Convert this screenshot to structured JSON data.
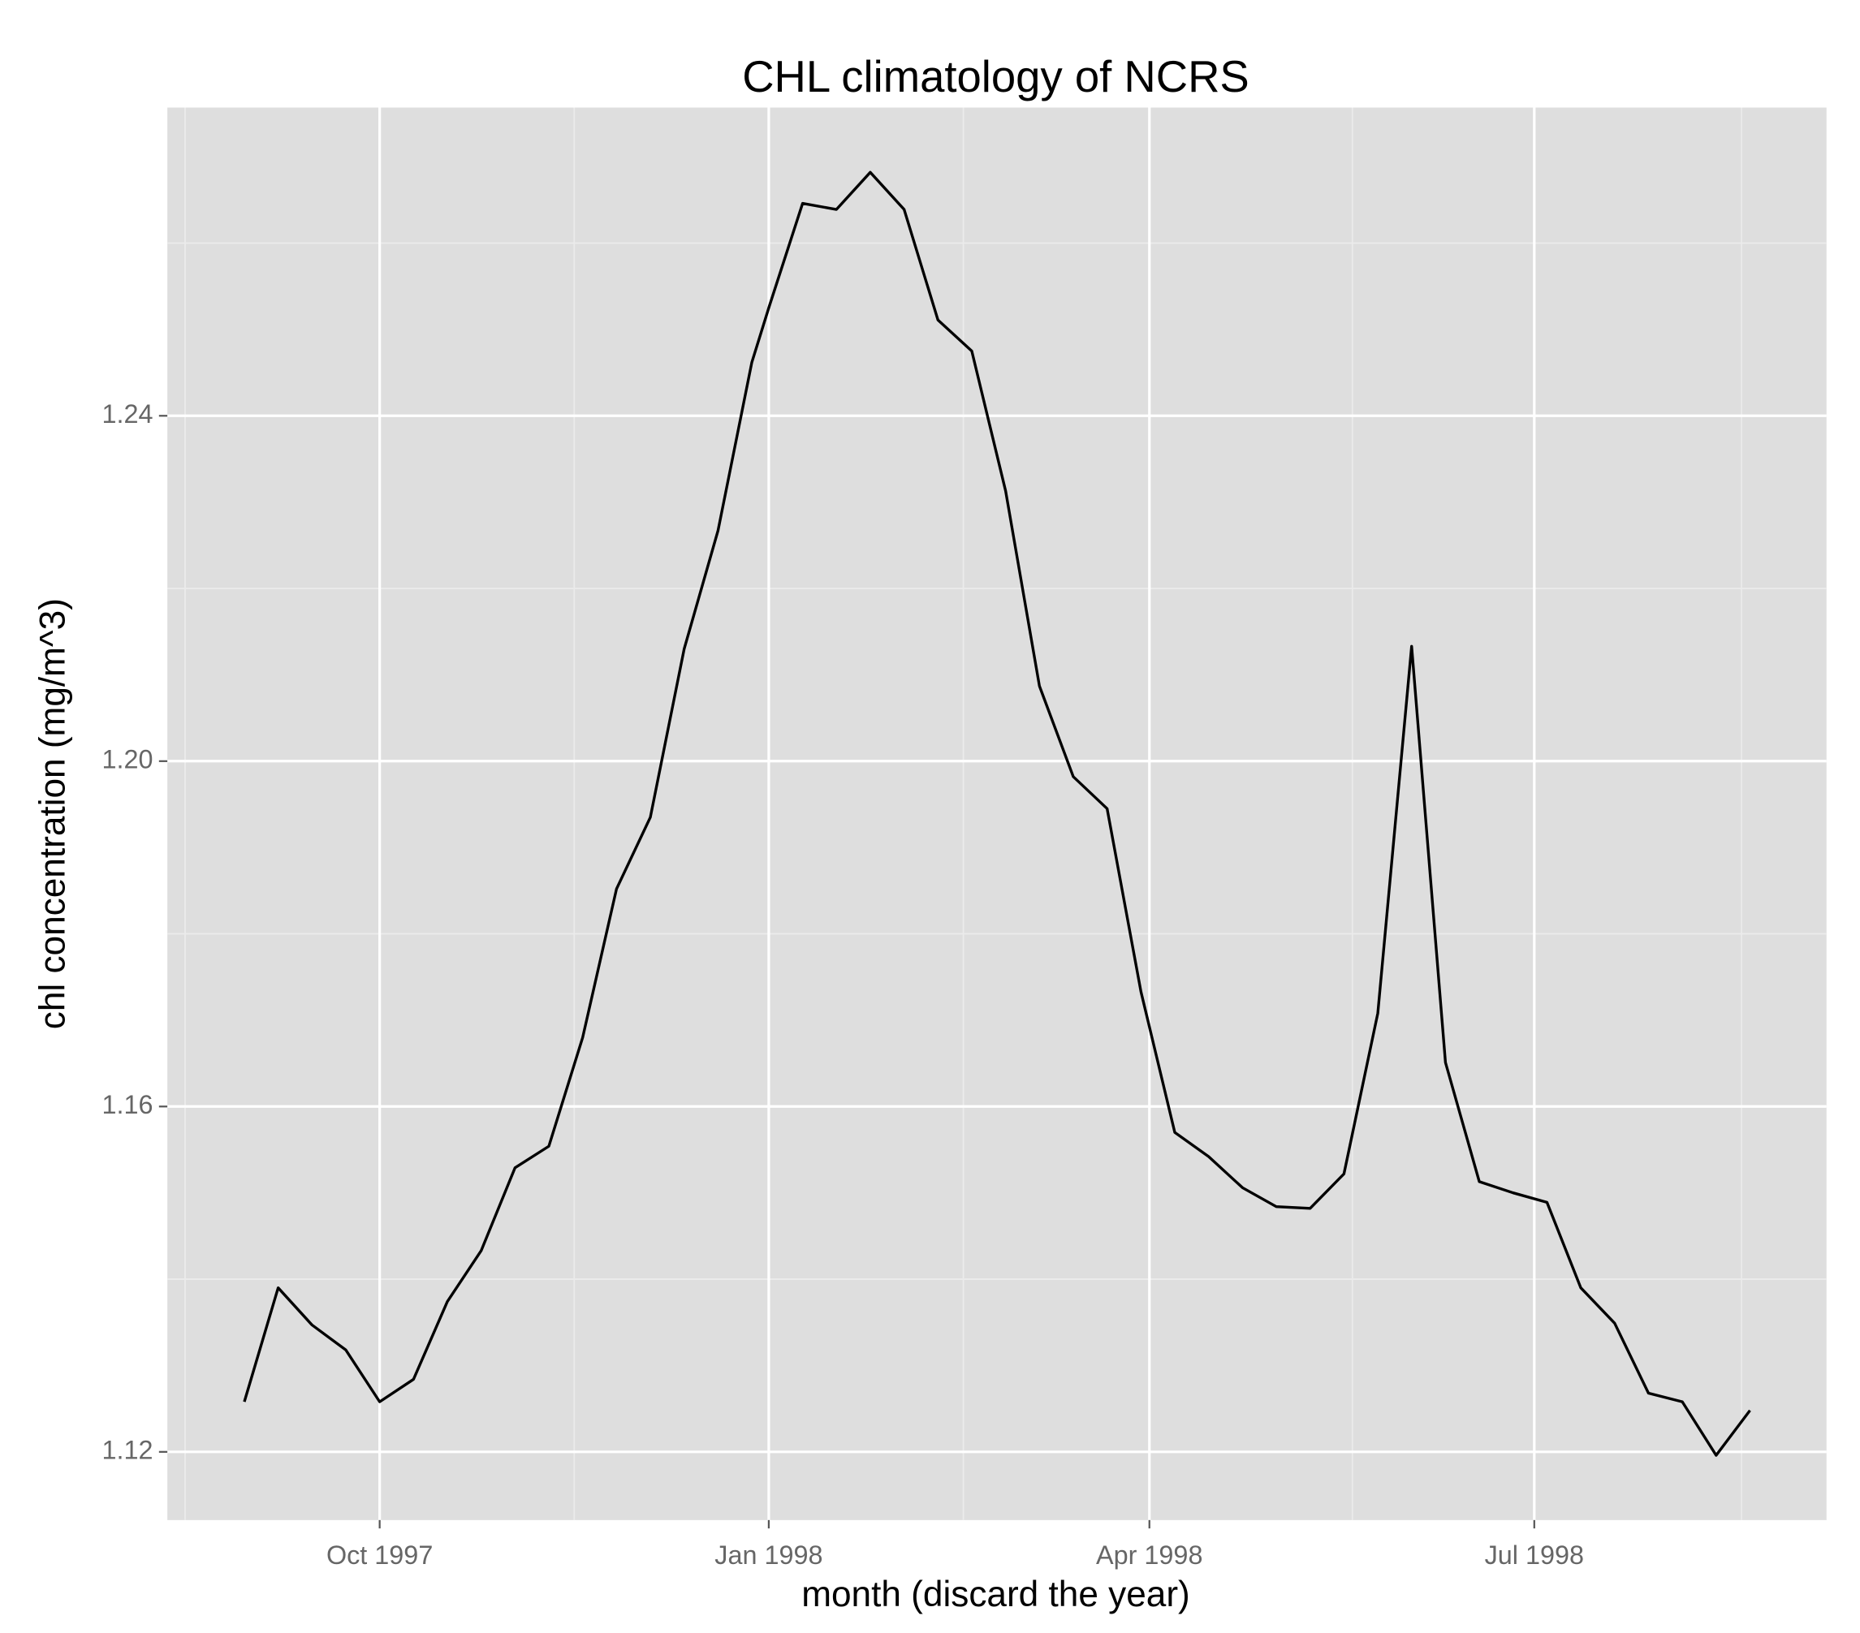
{
  "chart_data": {
    "type": "line",
    "title": "CHL climatology of NCRS",
    "x_label": "month (discard the year)",
    "y_label": "chl concentration (mg/m^3)",
    "x": [
      -124,
      -116,
      -108,
      -100,
      -92,
      -84,
      -76,
      -68,
      -60,
      -52,
      -44,
      -36,
      -28,
      -20,
      -12,
      -4,
      0,
      8,
      16,
      24,
      32,
      40,
      48,
      56,
      64,
      72,
      80,
      88,
      96,
      104,
      112,
      120,
      128,
      136,
      144,
      152,
      160,
      168,
      176,
      184,
      192,
      200,
      208,
      216,
      224,
      232
    ],
    "series": [
      {
        "color": "#000000",
        "values": [
          1.1258,
          1.139,
          1.1347,
          1.1318,
          1.1258,
          1.1284,
          1.1374,
          1.1433,
          1.1529,
          1.1554,
          1.168,
          1.1852,
          1.1935,
          1.213,
          1.2267,
          1.2462,
          1.2525,
          1.2646,
          1.2639,
          1.2682,
          1.2639,
          1.2511,
          1.2475,
          1.2313,
          1.2087,
          1.1982,
          1.1945,
          1.1733,
          1.157,
          1.1542,
          1.1506,
          1.1484,
          1.1482,
          1.1522,
          1.1708,
          1.2133,
          1.1651,
          1.1513,
          1.15,
          1.1489,
          1.139,
          1.1349,
          1.1268,
          1.1258,
          1.1196,
          1.1248
        ]
      }
    ],
    "xlim": [
      -142.2,
      250.1
    ],
    "xticks": [
      {
        "value": -92,
        "label": "Oct 1997"
      },
      {
        "value": 0,
        "label": "Jan 1998"
      },
      {
        "value": 90,
        "label": "Apr 1998"
      },
      {
        "value": 181,
        "label": "Jul 1998"
      }
    ],
    "ylim": [
      1.1121,
      1.2757
    ],
    "yticks": [
      {
        "value": 1.12,
        "label": "1.12"
      },
      {
        "value": 1.16,
        "label": "1.16"
      },
      {
        "value": 1.2,
        "label": "1.20"
      },
      {
        "value": 1.24,
        "label": "1.24"
      }
    ],
    "grid": true,
    "panel_color": "#dedede"
  }
}
